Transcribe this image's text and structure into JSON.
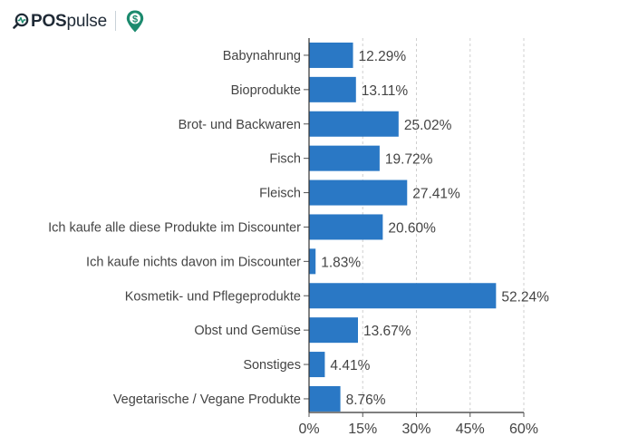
{
  "header": {
    "brand_part1": "POS",
    "brand_part2": "pulse",
    "logo_icon": "magnifier-pulse-icon",
    "pin_icon": "location-pin-dollar-icon",
    "pin_symbol": "$",
    "colors": {
      "brand_text": "#1f2a36",
      "accent": "#1c8a6e"
    }
  },
  "chart_data": {
    "type": "bar",
    "orientation": "horizontal",
    "categories": [
      "Babynahrung",
      "Bioprodukte",
      "Brot- und Backwaren",
      "Fisch",
      "Fleisch",
      "Ich kaufe alle diese Produkte im Discounter",
      "Ich kaufe nichts davon im Discounter",
      "Kosmetik- und Pflegeprodukte",
      "Obst und Gemüse",
      "Sonstiges",
      "Vegetarische / Vegane Produkte"
    ],
    "values": [
      12.29,
      13.11,
      25.02,
      19.72,
      27.41,
      20.6,
      1.83,
      52.24,
      13.67,
      4.41,
      8.76
    ],
    "value_labels": [
      "12.29%",
      "13.11%",
      "25.02%",
      "19.72%",
      "27.41%",
      "20.60%",
      "1.83%",
      "52.24%",
      "13.67%",
      "4.41%",
      "8.76%"
    ],
    "xlim": [
      0,
      60
    ],
    "xticks": [
      0,
      15,
      30,
      45,
      60
    ],
    "xtick_labels": [
      "0%",
      "15%",
      "30%",
      "45%",
      "60%"
    ],
    "grid": "vertical dashed",
    "bar_color": "#2a78c5",
    "title": "",
    "xlabel": "",
    "ylabel": ""
  }
}
